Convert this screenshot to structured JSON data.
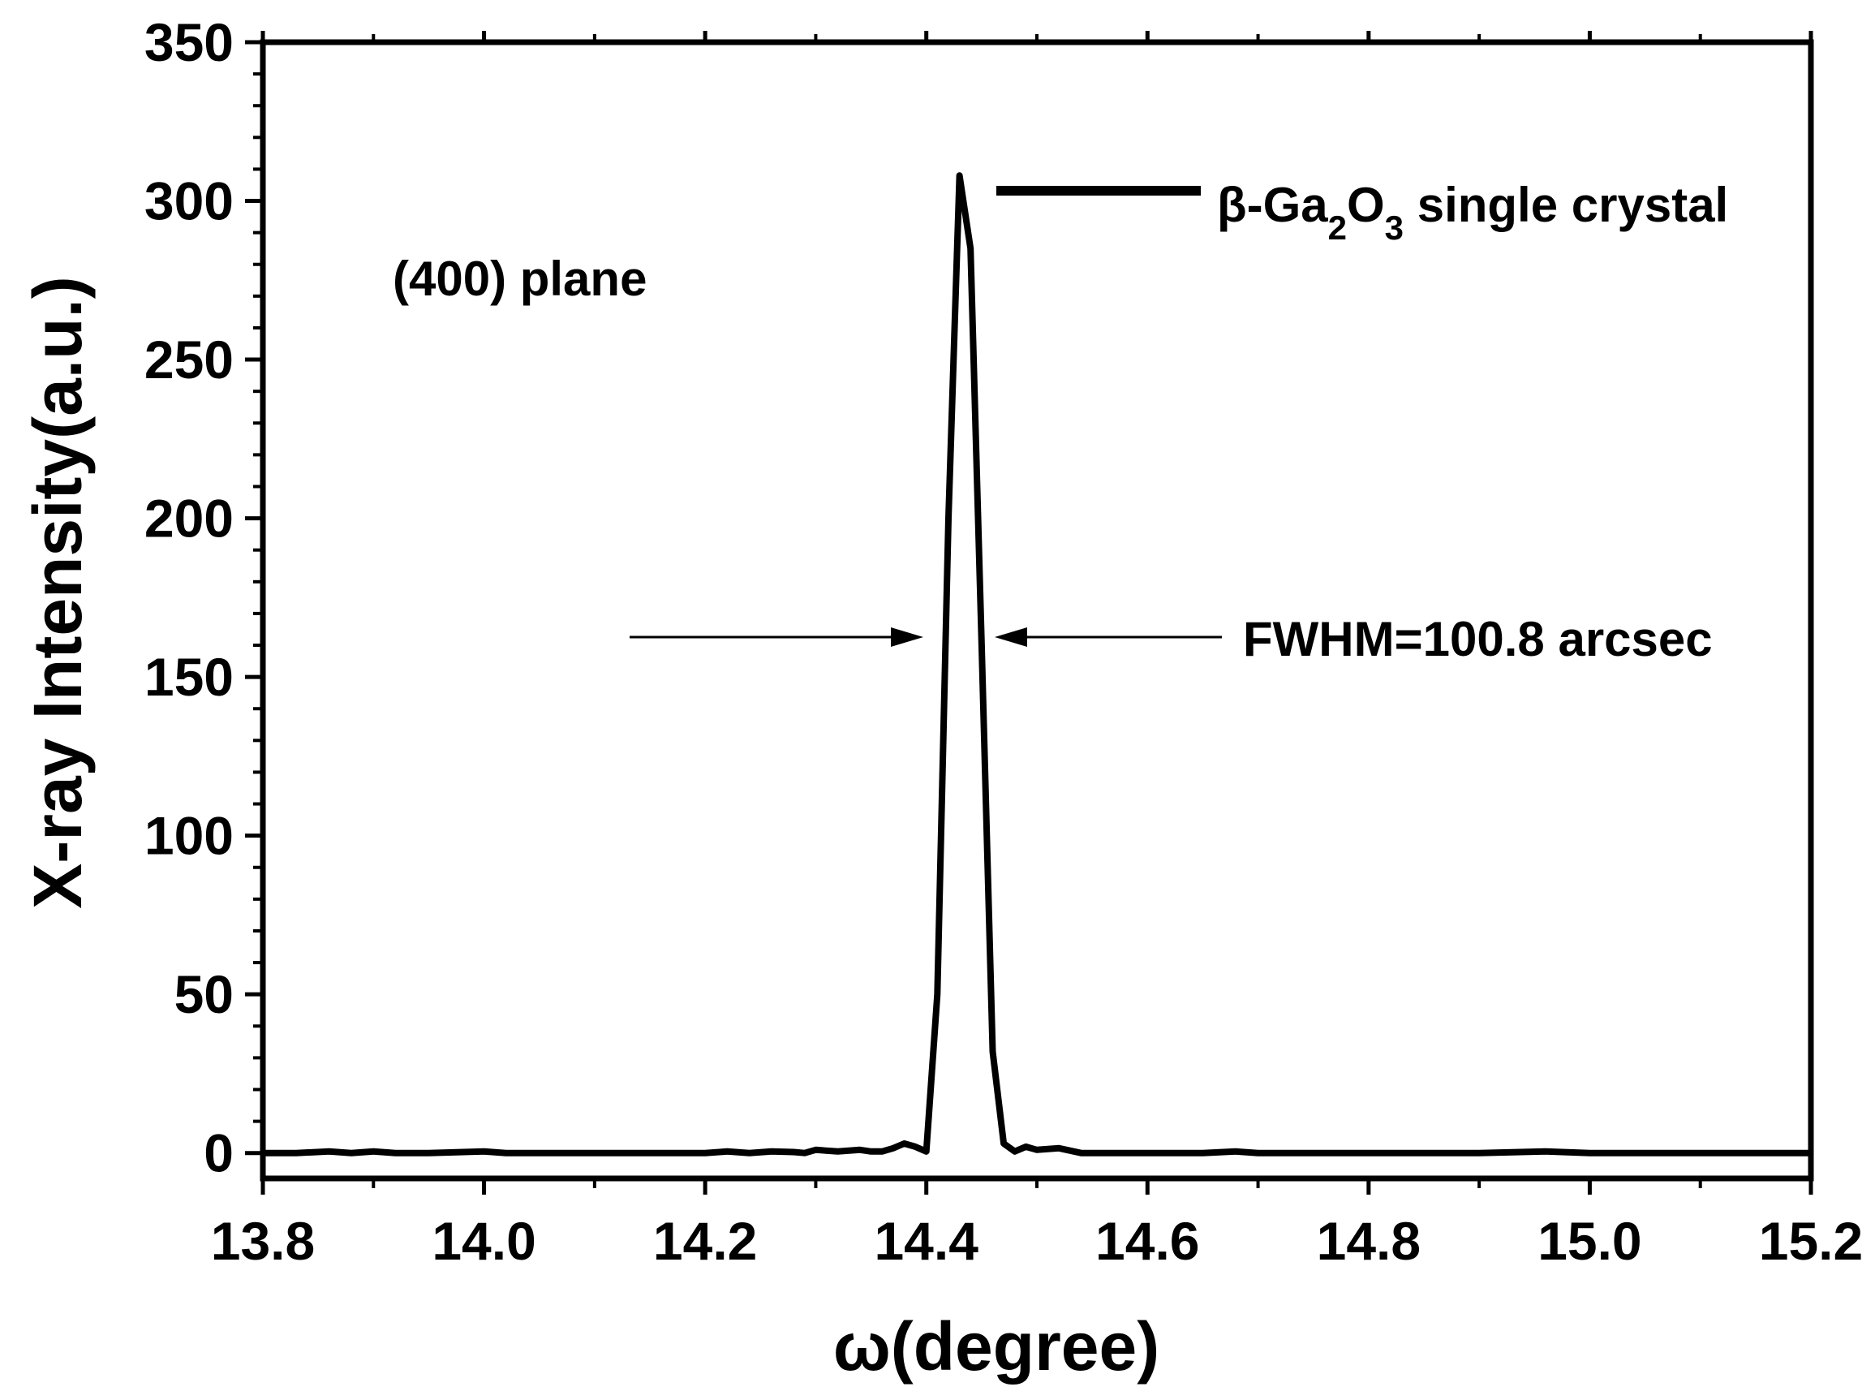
{
  "chart_data": {
    "type": "line",
    "xlabel": "ω(degree)",
    "ylabel": "X-ray Intensity(a.u.)",
    "xlim": [
      13.8,
      15.2
    ],
    "ylim": [
      -8,
      350
    ],
    "x_ticks": [
      13.8,
      14.0,
      14.2,
      14.4,
      14.6,
      14.8,
      15.0,
      15.2
    ],
    "x_tick_labels": [
      "13.8",
      "14.0",
      "14.2",
      "14.4",
      "14.6",
      "14.8",
      "15.0",
      "15.2"
    ],
    "y_ticks": [
      0,
      50,
      100,
      150,
      200,
      250,
      300,
      350
    ],
    "y_tick_labels": [
      "0",
      "50",
      "100",
      "150",
      "200",
      "250",
      "300",
      "350"
    ],
    "grid": false,
    "legend_position": "top-right",
    "series": [
      {
        "name": "β-Ga2O3 single crystal",
        "color": "#000000",
        "x": [
          13.8,
          13.83,
          13.86,
          13.88,
          13.9,
          13.92,
          13.95,
          14.0,
          14.02,
          14.05,
          14.1,
          14.15,
          14.2,
          14.22,
          14.24,
          14.26,
          14.28,
          14.29,
          14.3,
          14.32,
          14.34,
          14.35,
          14.36,
          14.37,
          14.38,
          14.39,
          14.4,
          14.41,
          14.42,
          14.43,
          14.44,
          14.45,
          14.46,
          14.47,
          14.48,
          14.49,
          14.5,
          14.52,
          14.54,
          14.6,
          14.65,
          14.68,
          14.7,
          14.8,
          14.9,
          14.96,
          15.0,
          15.1,
          15.2
        ],
        "y": [
          0,
          0,
          0.5,
          0,
          0.5,
          0,
          0,
          0.5,
          0,
          0,
          0,
          0,
          0,
          0.5,
          0,
          0.5,
          0.3,
          0,
          1,
          0.5,
          1,
          0.5,
          0.5,
          1.5,
          3,
          2,
          0.5,
          50,
          200,
          308,
          285,
          160,
          32,
          3,
          0.5,
          2,
          1,
          1.5,
          0,
          0,
          0,
          0.5,
          0,
          0,
          0,
          0.5,
          0,
          0,
          0
        ]
      }
    ],
    "annotations": {
      "plane": "(400) plane",
      "legend_prefix": "β-Ga",
      "legend_sub1": "2",
      "legend_mid": "O",
      "legend_sub2": "3",
      "legend_suffix": " single crystal",
      "fwhm": "FWHM=100.8 arcsec"
    }
  }
}
